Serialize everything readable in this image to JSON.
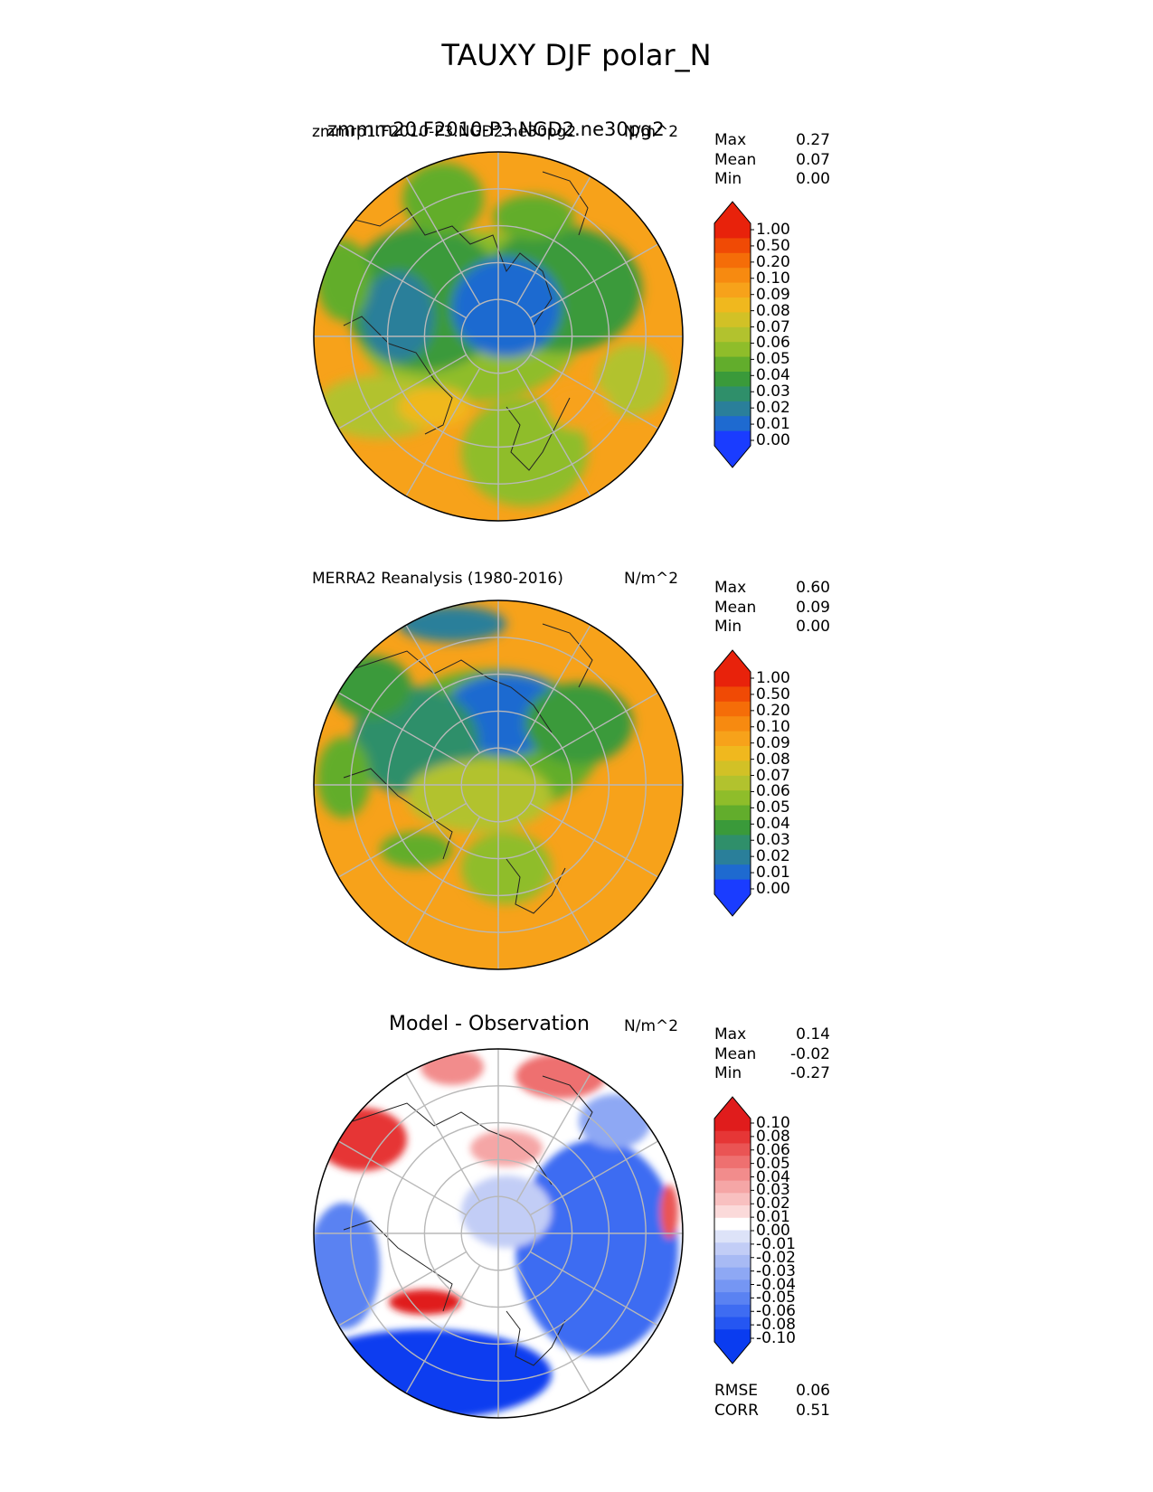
{
  "figure_title": "TAUXY DJF polar_N",
  "panels": [
    {
      "id": "model",
      "title_left": "zmmm20.F2010-P3.NGD2.ne30pg2",
      "title_left_overlap": "zmmrp1.F2010-P3.NGD2.ne30pg2",
      "title_right": "N/m^2",
      "stats": [
        {
          "label": "Max",
          "value": "0.27"
        },
        {
          "label": "Mean",
          "value": "0.07"
        },
        {
          "label": "Min",
          "value": "0.00"
        }
      ],
      "colorbar_ticks": [
        "1.00",
        "0.50",
        "0.20",
        "0.10",
        "0.09",
        "0.08",
        "0.07",
        "0.06",
        "0.05",
        "0.04",
        "0.03",
        "0.02",
        "0.01",
        "0.00"
      ]
    },
    {
      "id": "obs",
      "title_left": "MERRA2 Reanalysis (1980-2016)",
      "title_right": "N/m^2",
      "stats": [
        {
          "label": "Max",
          "value": "0.60"
        },
        {
          "label": "Mean",
          "value": "0.09"
        },
        {
          "label": "Min",
          "value": "0.00"
        }
      ],
      "colorbar_ticks": [
        "1.00",
        "0.50",
        "0.20",
        "0.10",
        "0.09",
        "0.08",
        "0.07",
        "0.06",
        "0.05",
        "0.04",
        "0.03",
        "0.02",
        "0.01",
        "0.00"
      ]
    },
    {
      "id": "diff",
      "title_center": "Model - Observation",
      "title_right": "N/m^2",
      "stats": [
        {
          "label": "Max",
          "value": "0.14"
        },
        {
          "label": "Mean",
          "value": "-0.02"
        },
        {
          "label": "Min",
          "value": "-0.27"
        }
      ],
      "colorbar_ticks": [
        "0.10",
        "0.08",
        "0.06",
        "0.05",
        "0.04",
        "0.03",
        "0.02",
        "0.01",
        "0.00",
        "-0.01",
        "-0.02",
        "-0.03",
        "-0.04",
        "-0.05",
        "-0.06",
        "-0.08",
        "-0.10"
      ],
      "metrics": [
        {
          "label": "RMSE",
          "value": "0.06"
        },
        {
          "label": "CORR",
          "value": "0.51"
        }
      ]
    }
  ],
  "colors": {
    "seq_scale": [
      "#1a3cff",
      "#1e6ad0",
      "#2a7f9a",
      "#2f8f6a",
      "#3a9a3a",
      "#62ad2c",
      "#8fbd2a",
      "#b2c22e",
      "#d2c126",
      "#f0b81e",
      "#f7a21a",
      "#f78a10",
      "#f56d08",
      "#f04a05",
      "#e8220b"
    ],
    "div_scale": [
      "#0a3cf0",
      "#2556f2",
      "#3e6cf2",
      "#5a82f2",
      "#7596f3",
      "#8ea8f4",
      "#a8baf4",
      "#c2cdf6",
      "#dde3f8",
      "#ffffff",
      "#fbdada",
      "#f8c0c0",
      "#f5a6a6",
      "#f28c8c",
      "#ee7070",
      "#ea5454",
      "#e63636",
      "#e01c1c"
    ],
    "grid": "#b8b8b8",
    "coast": "#222222"
  }
}
